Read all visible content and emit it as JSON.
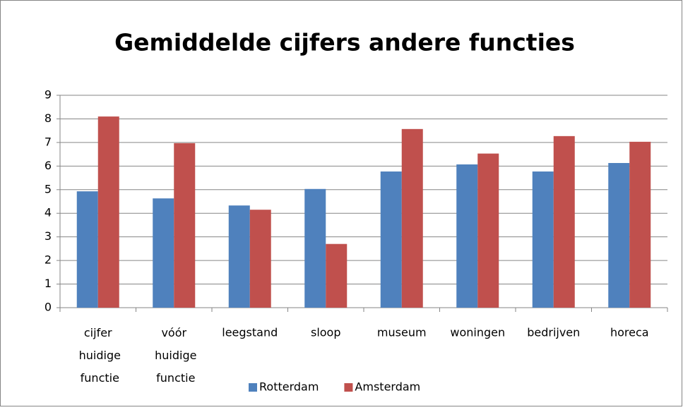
{
  "chart_data": {
    "type": "bar",
    "title": "Gemiddelde cijfers andere functies",
    "categories": [
      "cijfer huidige functie",
      "vóór huidige functie",
      "leegstand",
      "sloop",
      "museum",
      "woningen",
      "bedrijven",
      "horeca"
    ],
    "series": [
      {
        "name": "Rotterdam",
        "color": "#4f81bd",
        "values": [
          4.93,
          4.63,
          4.33,
          5.03,
          5.77,
          6.07,
          5.77,
          6.13
        ]
      },
      {
        "name": "Amsterdam",
        "color": "#c0504d",
        "values": [
          8.1,
          6.97,
          4.15,
          2.7,
          7.57,
          6.53,
          7.27,
          7.03
        ]
      }
    ],
    "ylim": [
      0,
      9
    ],
    "yticks": [
      0,
      1,
      2,
      3,
      4,
      5,
      6,
      7,
      8,
      9
    ],
    "grid": true,
    "legend": "bottom"
  }
}
